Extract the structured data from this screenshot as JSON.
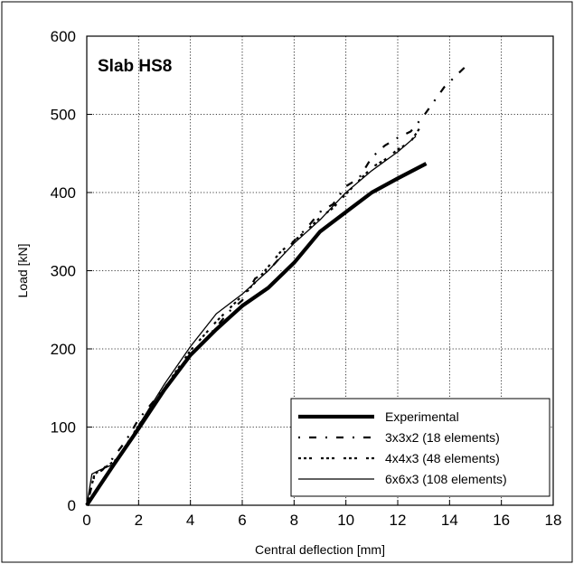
{
  "chart_data": {
    "type": "line",
    "title": "Slab HS8",
    "xlabel": "Central deflection [mm]",
    "ylabel": "Load [kN]",
    "xlim": [
      0,
      18
    ],
    "ylim": [
      0,
      600
    ],
    "x_ticks": [
      "0",
      "2",
      "4",
      "6",
      "8",
      "10",
      "12",
      "14",
      "16",
      "18"
    ],
    "y_ticks": [
      "0",
      "100",
      "200",
      "300",
      "400",
      "500",
      "600"
    ],
    "grid": "dotted",
    "legend_position": "bottom-right",
    "series": [
      {
        "name": "Experimental",
        "style": "thick-solid",
        "x": [
          0,
          0.5,
          1,
          2,
          3,
          4,
          5,
          6,
          7,
          8,
          9,
          10,
          11,
          12,
          13.1
        ],
        "y": [
          0,
          25,
          50,
          98,
          148,
          192,
          225,
          255,
          278,
          310,
          350,
          375,
          400,
          418,
          437
        ]
      },
      {
        "name": "3x3x2 (18 elements)",
        "style": "dash-dot",
        "x": [
          0,
          0.3,
          0.6,
          1,
          1.5,
          2,
          3,
          4,
          5,
          5.5,
          6,
          6.5,
          7,
          7.5,
          8,
          8.5,
          9,
          9.5,
          10,
          10.5,
          11,
          11.5,
          12,
          12.5,
          13,
          13.8,
          14.8
        ],
        "y": [
          0,
          38,
          45,
          60,
          82,
          110,
          150,
          190,
          228,
          248,
          262,
          290,
          300,
          318,
          338,
          355,
          375,
          385,
          408,
          418,
          445,
          460,
          470,
          478,
          498,
          535,
          567
        ]
      },
      {
        "name": "4x4x3 (48 elements)",
        "style": "dotted",
        "x": [
          0,
          0.3,
          0.7,
          1.2,
          2,
          3,
          4,
          5,
          6,
          6.5,
          7,
          7.5,
          8,
          8.5,
          9,
          9.5,
          10,
          10.5,
          11,
          11.5,
          12,
          12.5,
          13
        ],
        "y": [
          0,
          40,
          48,
          60,
          102,
          150,
          198,
          235,
          268,
          285,
          305,
          325,
          338,
          352,
          368,
          380,
          398,
          415,
          432,
          442,
          455,
          465,
          490
        ]
      },
      {
        "name": "6x6x3 (108 elements)",
        "style": "thin-solid",
        "x": [
          0,
          0.2,
          0.5,
          1,
          1.5,
          2,
          3,
          4,
          5,
          6,
          7,
          8,
          9,
          10,
          11,
          12,
          12.7
        ],
        "y": [
          0,
          40,
          45,
          52,
          75,
          102,
          155,
          203,
          245,
          270,
          300,
          335,
          365,
          400,
          428,
          452,
          472
        ]
      }
    ]
  }
}
